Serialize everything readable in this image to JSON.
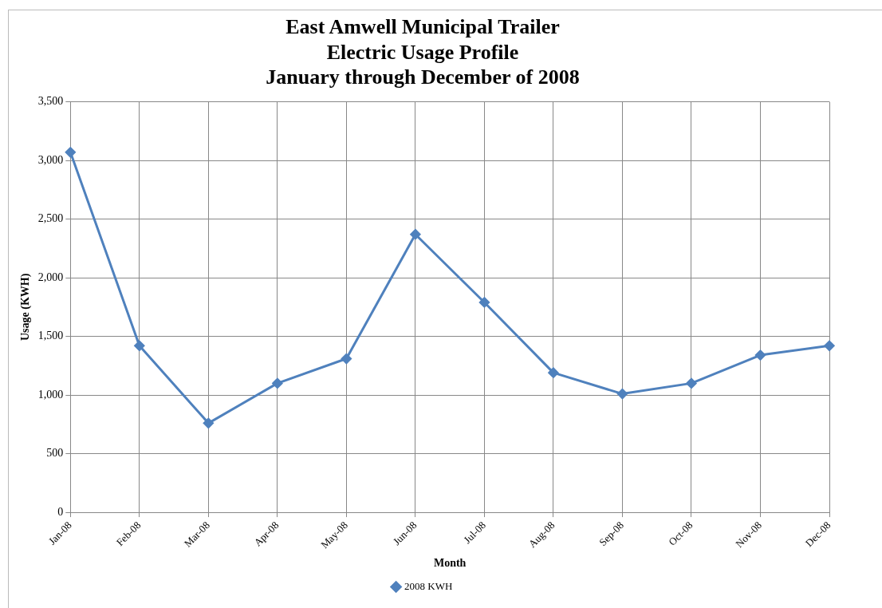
{
  "chart_data": {
    "type": "line",
    "title": [
      "East Amwell Municipal Trailer",
      "Electric Usage Profile",
      "January through December of 2008"
    ],
    "xlabel": "Month",
    "ylabel": "Usage (KWH)",
    "categories": [
      "Jan-08",
      "Feb-08",
      "Mar-08",
      "Apr-08",
      "May-08",
      "Jun-08",
      "Jul-08",
      "Aug-08",
      "Sep-08",
      "Oct-08",
      "Nov-08",
      "Dec-08"
    ],
    "series": [
      {
        "name": "2008 KWH",
        "color": "#4f81bd",
        "values": [
          3070,
          1420,
          760,
          1100,
          1310,
          2370,
          1790,
          1190,
          1010,
          1100,
          1340,
          1420
        ]
      }
    ],
    "ylim": [
      0,
      3500
    ],
    "yticks": [
      0,
      500,
      {
        "value": 1000,
        "label": "1,000"
      },
      {
        "value": 1500,
        "label": "1,500"
      },
      {
        "value": 2000,
        "label": "2,000"
      },
      {
        "value": 2500,
        "label": "2,500"
      },
      {
        "value": 3000,
        "label": "3,000"
      },
      {
        "value": 3500,
        "label": "3,500"
      }
    ],
    "grid": true,
    "legend": "bottom",
    "marker": "diamond",
    "line_style": "solid"
  }
}
